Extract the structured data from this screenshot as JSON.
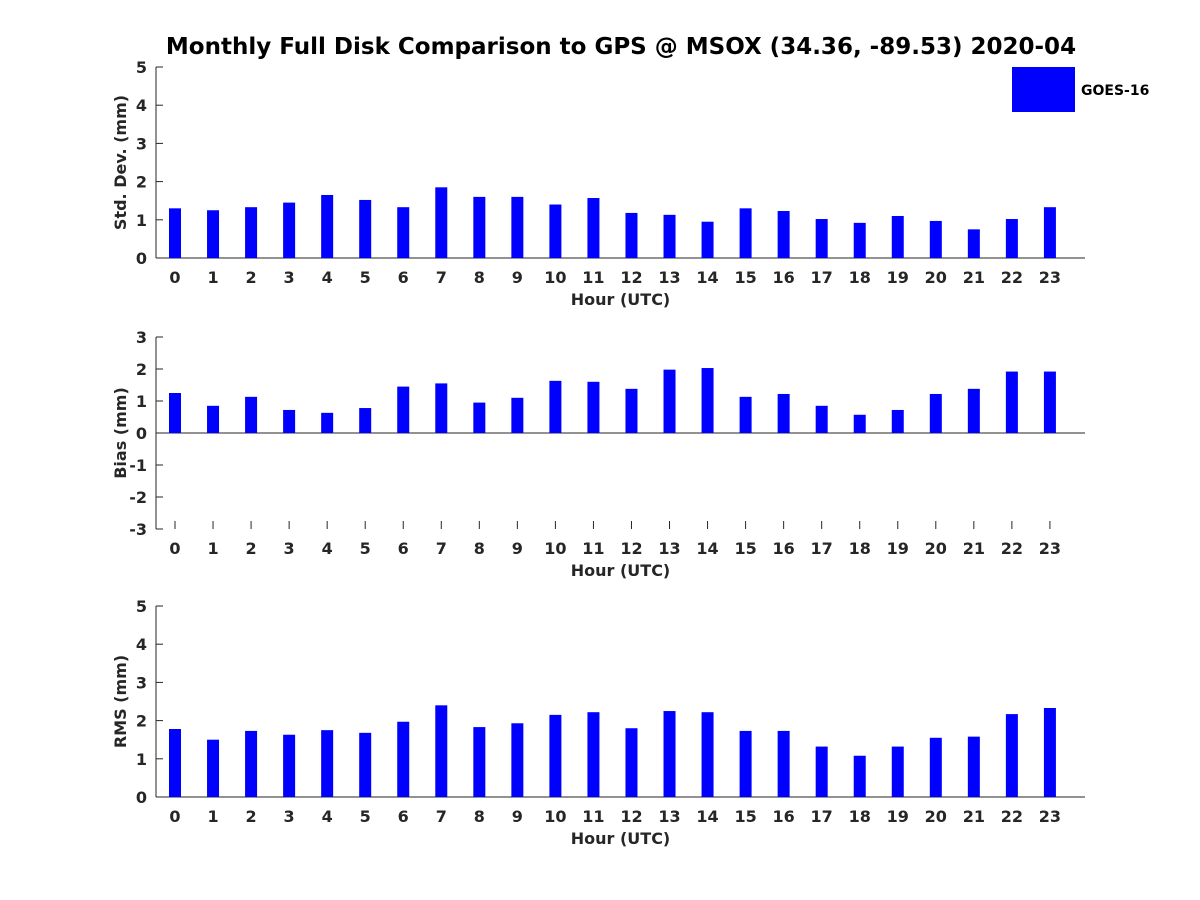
{
  "title": "Monthly Full Disk Comparison to GPS @ MSOX (34.36, -89.53) 2020-04",
  "legend": {
    "label": "GOES-16",
    "color": "#0000ff"
  },
  "chart_data": [
    {
      "type": "bar",
      "xlabel": "Hour (UTC)",
      "ylabel": "Std. Dev. (mm)",
      "ylim": [
        0,
        5
      ],
      "yticks": [
        0,
        1,
        2,
        3,
        4,
        5
      ],
      "categories": [
        "0",
        "1",
        "2",
        "3",
        "4",
        "5",
        "6",
        "7",
        "8",
        "9",
        "10",
        "11",
        "12",
        "13",
        "14",
        "15",
        "16",
        "17",
        "18",
        "19",
        "20",
        "21",
        "22",
        "23"
      ],
      "series": [
        {
          "name": "GOES-16",
          "color": "#0000ff",
          "values": [
            1.3,
            1.25,
            1.33,
            1.45,
            1.65,
            1.52,
            1.33,
            1.85,
            1.6,
            1.6,
            1.4,
            1.57,
            1.18,
            1.13,
            0.95,
            1.3,
            1.23,
            1.02,
            0.92,
            1.1,
            0.97,
            0.75,
            1.02,
            1.33
          ]
        }
      ]
    },
    {
      "type": "bar",
      "xlabel": "Hour (UTC)",
      "ylabel": "Bias (mm)",
      "ylim": [
        -3,
        3
      ],
      "yticks": [
        -3,
        -2,
        -1,
        0,
        1,
        2,
        3
      ],
      "categories": [
        "0",
        "1",
        "2",
        "3",
        "4",
        "5",
        "6",
        "7",
        "8",
        "9",
        "10",
        "11",
        "12",
        "13",
        "14",
        "15",
        "16",
        "17",
        "18",
        "19",
        "20",
        "21",
        "22",
        "23"
      ],
      "series": [
        {
          "name": "GOES-16",
          "color": "#0000ff",
          "values": [
            1.25,
            0.85,
            1.13,
            0.72,
            0.63,
            0.78,
            1.45,
            1.55,
            0.95,
            1.1,
            1.63,
            1.6,
            1.38,
            1.98,
            2.03,
            1.13,
            1.22,
            0.85,
            0.57,
            0.72,
            1.22,
            1.38,
            1.92,
            1.92
          ]
        }
      ]
    },
    {
      "type": "bar",
      "xlabel": "Hour (UTC)",
      "ylabel": "RMS (mm)",
      "ylim": [
        0,
        5
      ],
      "yticks": [
        0,
        1,
        2,
        3,
        4,
        5
      ],
      "categories": [
        "0",
        "1",
        "2",
        "3",
        "4",
        "5",
        "6",
        "7",
        "8",
        "9",
        "10",
        "11",
        "12",
        "13",
        "14",
        "15",
        "16",
        "17",
        "18",
        "19",
        "20",
        "21",
        "22",
        "23"
      ],
      "series": [
        {
          "name": "GOES-16",
          "color": "#0000ff",
          "values": [
            1.78,
            1.5,
            1.73,
            1.63,
            1.75,
            1.68,
            1.97,
            2.4,
            1.83,
            1.93,
            2.15,
            2.22,
            1.8,
            2.25,
            2.22,
            1.73,
            1.73,
            1.32,
            1.08,
            1.32,
            1.55,
            1.58,
            2.17,
            2.33
          ]
        }
      ]
    }
  ]
}
